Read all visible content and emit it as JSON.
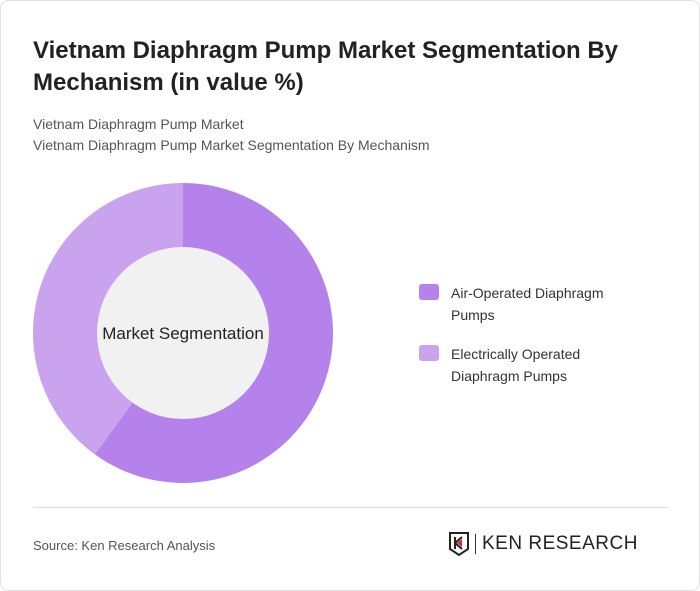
{
  "title": "Vietnam Diaphragm Pump Market Segmentation By Mechanism (in value %)",
  "breadcrumb": [
    "Vietnam Diaphragm Pump Market",
    "Vietnam Diaphragm Pump Market Segmentation By Mechanism"
  ],
  "chart_data": {
    "type": "pie",
    "center_label": "Market Segmentation",
    "categories": [
      "Air-Operated Diaphragm Pumps",
      "Electrically Operated Diaphragm Pumps"
    ],
    "values": [
      60,
      40
    ],
    "colors": [
      "#b482ea",
      "#c9a3ee"
    ],
    "legend": "right"
  },
  "source": "Source: Ken Research Analysis",
  "logo": "KEN RESEARCH"
}
